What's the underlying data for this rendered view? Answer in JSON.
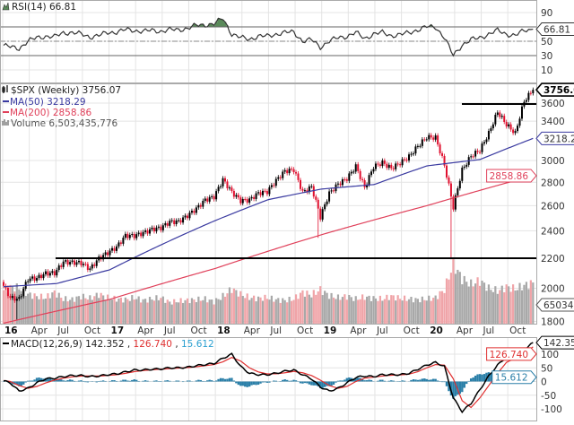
{
  "chart_data": {
    "type": "stock-candlestick",
    "symbol_label": "$SPX (Weekly) 3756.07",
    "period": "Weekly",
    "x_ticks": [
      "16",
      "Apr",
      "Jul",
      "Oct",
      "17",
      "Apr",
      "Jul",
      "Oct",
      "18",
      "Apr",
      "Jul",
      "Oct",
      "19",
      "Apr",
      "Jul",
      "Oct",
      "20",
      "Apr",
      "Jul",
      "Oct"
    ],
    "x_ticks_bold": [
      "16",
      "17",
      "18",
      "19",
      "20"
    ],
    "price": {
      "scale": "log",
      "ylim": [
        1780,
        3820
      ],
      "y_ticks": [
        3600,
        3400,
        3000,
        2800,
        2600,
        2400,
        2200,
        2000,
        1800
      ],
      "grid": true,
      "monthly_close": [
        1940,
        1932,
        2060,
        2065,
        2097,
        2099,
        2174,
        2171,
        2168,
        2126,
        2199,
        2239,
        2279,
        2364,
        2363,
        2384,
        2412,
        2423,
        2470,
        2472,
        2519,
        2575,
        2648,
        2674,
        2824,
        2714,
        2641,
        2648,
        2705,
        2718,
        2816,
        2902,
        2914,
        2712,
        2760,
        2507,
        2704,
        2784,
        2834,
        2946,
        2752,
        2942,
        2980,
        2926,
        2977,
        3038,
        3141,
        3231,
        3226,
        2954,
        2585,
        2912,
        3044,
        3100,
        3271,
        3500,
        3363,
        3270,
        3622,
        3756.07
      ],
      "notable_lows": [
        {
          "month": 1,
          "low": 1810
        },
        {
          "month": 35,
          "low": 2347
        },
        {
          "month": 50,
          "low": 2192
        }
      ],
      "last_value": "3756.07",
      "horizontal_lines": [
        2200,
        3590
      ],
      "colors": {
        "up": "#000000",
        "down": "#e0102f"
      }
    },
    "ma50": {
      "label": "MA(50) 3218.29",
      "value": "3218.29",
      "color": "#3a3aa0",
      "semiannual": [
        2010,
        2030,
        2120,
        2300,
        2480,
        2650,
        2740,
        2780,
        2950,
        3010,
        3218.29
      ]
    },
    "ma200": {
      "label": "MA(200) 2858.86",
      "value": "2858.86",
      "color": "#e0405a",
      "annual": [
        1790,
        1930,
        2130,
        2370,
        2600,
        2858.86
      ]
    },
    "volume": {
      "label": "Volume 6,503,435,776",
      "tag": "6503435",
      "unit": "billions",
      "monthly": [
        5.5,
        5.5,
        4.5,
        4.2,
        4.0,
        4.8,
        3.8,
        3.7,
        4.2,
        3.9,
        4.5,
        4.0,
        3.8,
        3.7,
        4.0,
        3.6,
        3.8,
        4.0,
        3.3,
        3.5,
        3.6,
        3.7,
        3.8,
        3.4,
        4.2,
        5.3,
        4.5,
        4.0,
        3.9,
        4.0,
        3.7,
        3.6,
        3.8,
        4.8,
        4.4,
        5.2,
        4.3,
        4.0,
        4.2,
        3.8,
        4.1,
        3.9,
        3.8,
        4.2,
        3.9,
        3.8,
        3.7,
        3.8,
        4.0,
        5.2,
        9.0,
        6.8,
        6.0,
        6.5,
        5.4,
        5.0,
        5.6,
        5.3,
        5.8,
        6.2
      ],
      "colors": {
        "up": "#a8a8a8",
        "down": "#f0a4a8"
      }
    },
    "rsi": {
      "label": "RSI(14) 66.81",
      "value": "66.81",
      "ylim": [
        0,
        100
      ],
      "y_ticks": [
        90,
        50,
        30,
        10
      ],
      "overbought": 70,
      "oversold": 30,
      "fill_color": "#5a8a5a",
      "monthly": [
        42,
        40,
        50,
        55,
        57,
        56,
        62,
        62,
        60,
        56,
        58,
        62,
        63,
        66,
        65,
        64,
        65,
        64,
        66,
        66,
        68,
        72,
        73,
        74,
        82,
        60,
        55,
        53,
        57,
        57,
        60,
        62,
        63,
        50,
        52,
        42,
        50,
        55,
        57,
        62,
        54,
        60,
        62,
        58,
        59,
        62,
        66,
        70,
        70,
        55,
        30,
        45,
        52,
        55,
        60,
        65,
        60,
        58,
        65,
        66.81
      ]
    },
    "macd": {
      "label_prefix": "MACD(12,26,9)",
      "macd_value": "142.352",
      "signal_value": "126.740",
      "hist_value": "15.612",
      "y_ticks": [
        100,
        50,
        0,
        -50,
        -100
      ],
      "colors": {
        "macd": "#000000",
        "signal": "#e03030",
        "hist": "#2a7fa8"
      },
      "macd_monthly": [
        -5,
        -35,
        -25,
        -5,
        10,
        12,
        18,
        22,
        22,
        18,
        20,
        25,
        28,
        35,
        42,
        42,
        45,
        46,
        50,
        50,
        52,
        58,
        62,
        66,
        85,
        100,
        55,
        30,
        25,
        25,
        30,
        38,
        42,
        25,
        10,
        -20,
        -35,
        -25,
        -5,
        15,
        20,
        18,
        25,
        25,
        25,
        30,
        45,
        60,
        70,
        55,
        -60,
        -110,
        -80,
        -30,
        20,
        60,
        90,
        85,
        115,
        142.352
      ],
      "signal_monthly": [
        0,
        -15,
        -25,
        -18,
        -5,
        5,
        12,
        17,
        20,
        20,
        20,
        22,
        25,
        30,
        36,
        40,
        43,
        45,
        47,
        49,
        51,
        54,
        58,
        62,
        72,
        88,
        75,
        50,
        35,
        28,
        28,
        32,
        37,
        32,
        22,
        5,
        -15,
        -25,
        -18,
        0,
        12,
        16,
        20,
        23,
        24,
        27,
        36,
        50,
        62,
        60,
        10,
        -70,
        -95,
        -60,
        -15,
        30,
        70,
        85,
        100,
        126.74
      ]
    }
  }
}
